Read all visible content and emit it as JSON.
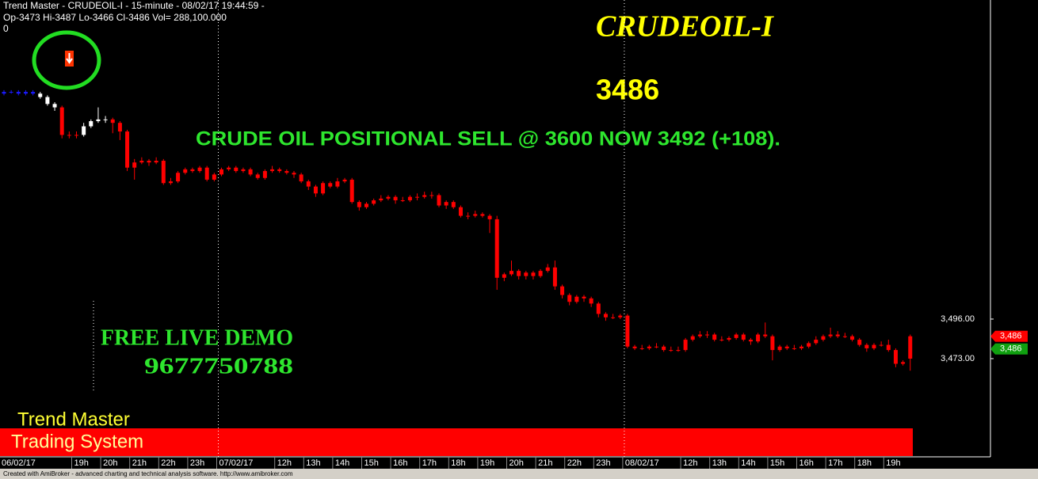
{
  "header": {
    "line1": "Trend Master  - CRUDEOIL-I - 15-minute  - 08/02/17 19:44:59 -",
    "line2": "Op-3473  Hi-3487  Lo-3466  Cl-3486  Vol= 288,100.000",
    "line3": "0"
  },
  "chart_data": {
    "type": "candlestick",
    "title": "CRUDEOIL-I",
    "last_price": 3486,
    "annotations": [
      "CRUDE OIL POSITIONAL SELL @ 3600 NOW 3492 (+108).",
      "FREE LIVE DEMO",
      "9677750788"
    ],
    "brand": [
      "Trend Master",
      "Trading System"
    ],
    "categories": [
      "06/02/17",
      null,
      null,
      null,
      null,
      null,
      null,
      null,
      null,
      null,
      "19h",
      null,
      null,
      null,
      "20h",
      null,
      null,
      null,
      "21h",
      null,
      null,
      null,
      "22h",
      null,
      null,
      null,
      "23h",
      null,
      null,
      null,
      "07/02/17",
      null,
      null,
      null,
      null,
      null,
      null,
      null,
      "12h",
      null,
      null,
      null,
      "13h",
      null,
      null,
      null,
      "14h",
      null,
      null,
      null,
      "15h",
      null,
      null,
      null,
      "16h",
      null,
      null,
      null,
      "17h",
      null,
      null,
      null,
      "18h",
      null,
      null,
      null,
      "19h",
      null,
      null,
      null,
      "20h",
      null,
      null,
      null,
      "21h",
      null,
      null,
      null,
      "22h",
      null,
      null,
      null,
      "23h",
      null,
      null,
      null,
      "08/02/17",
      null,
      null,
      null,
      null,
      null,
      null,
      null,
      "12h",
      null,
      null,
      null,
      "13h",
      null,
      null,
      null,
      "14h",
      null,
      null,
      null,
      "15h",
      null,
      null,
      null,
      "16h",
      null,
      null,
      null,
      "17h",
      null,
      null,
      null,
      "18h",
      null,
      null,
      null,
      "19h",
      null,
      null,
      null
    ],
    "open": [
      3627,
      3628,
      3628,
      3627,
      3628,
      3627,
      3625,
      3621,
      3619,
      3603,
      3603,
      3603,
      3608,
      3611,
      3612,
      3612,
      3610,
      3605,
      3584,
      3587,
      3588,
      3587,
      3588,
      3575,
      3576,
      3581,
      3583,
      3582,
      3584,
      3577,
      3580,
      3583,
      3584,
      3582,
      3583,
      3580,
      3578,
      3582,
      3583,
      3582,
      3581,
      3580,
      3576,
      3573,
      3569,
      3575,
      3573,
      3576,
      3577,
      3564,
      3561,
      3563,
      3565,
      3566,
      3567,
      3565,
      3565,
      3567,
      3567,
      3568,
      3568,
      3562,
      3564,
      3561,
      3556,
      3556,
      3557,
      3556,
      3554,
      3520,
      3522,
      3524,
      3521,
      3523,
      3521,
      3524,
      3526,
      3515,
      3510,
      3506,
      3509,
      3508,
      3505,
      3499,
      3497,
      3497,
      3498,
      3480,
      3479,
      3479,
      3480,
      3480,
      3478,
      3478,
      3478,
      3484,
      3486,
      3487,
      3487,
      3484,
      3484,
      3485,
      3487,
      3484,
      3483,
      3487,
      3486,
      3478,
      3480,
      3479,
      3479,
      3480,
      3482,
      3484,
      3486,
      3487,
      3486,
      3486,
      3484,
      3481,
      3479,
      3481,
      3481,
      3478,
      3470,
      3473
    ],
    "high": [
      3629,
      3629,
      3629,
      3629,
      3629,
      3628,
      3626,
      3622,
      3620,
      3605,
      3605,
      3610,
      3612,
      3619,
      3614,
      3613,
      3611,
      3606,
      3589,
      3590,
      3589,
      3590,
      3589,
      3578,
      3582,
      3584,
      3584,
      3585,
      3585,
      3581,
      3584,
      3585,
      3585,
      3584,
      3584,
      3581,
      3583,
      3585,
      3584,
      3583,
      3582,
      3581,
      3577,
      3574,
      3576,
      3576,
      3578,
      3578,
      3578,
      3565,
      3564,
      3566,
      3568,
      3568,
      3568,
      3567,
      3568,
      3569,
      3570,
      3570,
      3569,
      3565,
      3565,
      3562,
      3558,
      3559,
      3558,
      3557,
      3556,
      3523,
      3530,
      3525,
      3524,
      3524,
      3525,
      3528,
      3530,
      3516,
      3511,
      3510,
      3510,
      3509,
      3506,
      3500,
      3499,
      3499,
      3499,
      3481,
      3481,
      3481,
      3482,
      3481,
      3480,
      3480,
      3485,
      3487,
      3489,
      3489,
      3488,
      3486,
      3486,
      3488,
      3488,
      3485,
      3488,
      3494,
      3487,
      3481,
      3481,
      3481,
      3481,
      3483,
      3486,
      3487,
      3491,
      3489,
      3488,
      3487,
      3485,
      3482,
      3482,
      3483,
      3484,
      3479,
      3472,
      3487
    ],
    "low": [
      3626,
      3627,
      3626,
      3626,
      3626,
      3624,
      3620,
      3617,
      3601,
      3601,
      3601,
      3602,
      3607,
      3610,
      3610,
      3604,
      3600,
      3582,
      3577,
      3586,
      3585,
      3586,
      3574,
      3574,
      3575,
      3580,
      3581,
      3581,
      3576,
      3576,
      3579,
      3582,
      3581,
      3581,
      3579,
      3577,
      3577,
      3581,
      3581,
      3580,
      3578,
      3575,
      3571,
      3567,
      3568,
      3572,
      3572,
      3575,
      3563,
      3559,
      3560,
      3562,
      3564,
      3565,
      3563,
      3564,
      3564,
      3565,
      3566,
      3566,
      3561,
      3560,
      3560,
      3555,
      3554,
      3555,
      3555,
      3546,
      3513,
      3518,
      3521,
      3519,
      3519,
      3519,
      3520,
      3523,
      3513,
      3508,
      3504,
      3505,
      3506,
      3503,
      3497,
      3495,
      3496,
      3496,
      3479,
      3478,
      3478,
      3478,
      3479,
      3477,
      3477,
      3477,
      3477,
      3483,
      3485,
      3485,
      3483,
      3483,
      3483,
      3484,
      3483,
      3481,
      3482,
      3485,
      3472,
      3477,
      3478,
      3478,
      3478,
      3479,
      3481,
      3483,
      3485,
      3485,
      3485,
      3483,
      3480,
      3477,
      3478,
      3480,
      3477,
      3468,
      3469,
      3466
    ],
    "close": [
      3628,
      3628,
      3627,
      3628,
      3627,
      3625,
      3621,
      3619,
      3603,
      3603,
      3603,
      3608,
      3611,
      3612,
      3612,
      3610,
      3605,
      3584,
      3587,
      3588,
      3587,
      3588,
      3575,
      3576,
      3581,
      3583,
      3582,
      3584,
      3577,
      3580,
      3583,
      3584,
      3582,
      3583,
      3580,
      3578,
      3582,
      3583,
      3582,
      3581,
      3580,
      3576,
      3573,
      3569,
      3575,
      3573,
      3576,
      3577,
      3564,
      3561,
      3563,
      3565,
      3566,
      3567,
      3565,
      3565,
      3567,
      3567,
      3568,
      3568,
      3562,
      3564,
      3561,
      3556,
      3556,
      3557,
      3556,
      3554,
      3520,
      3522,
      3524,
      3521,
      3523,
      3521,
      3524,
      3526,
      3515,
      3510,
      3506,
      3509,
      3508,
      3505,
      3499,
      3497,
      3497,
      3498,
      3480,
      3479,
      3479,
      3480,
      3480,
      3478,
      3478,
      3478,
      3484,
      3486,
      3487,
      3487,
      3484,
      3484,
      3485,
      3487,
      3484,
      3483,
      3487,
      3486,
      3478,
      3480,
      3479,
      3479,
      3480,
      3482,
      3484,
      3486,
      3487,
      3486,
      3486,
      3484,
      3481,
      3479,
      3481,
      3481,
      3478,
      3470,
      3471,
      3486
    ],
    "colors": [
      "#1a1aff",
      "#1a1aff",
      "#1a1aff",
      "#1a1aff",
      "#1a1aff",
      "#ffffff",
      "#ffffff",
      "#ffffff",
      "#ff0000",
      "#ff0000",
      "#ff0000",
      "#ffffff",
      "#ffffff",
      "#ffffff",
      "#ffffff",
      "#ff0000",
      "#ff0000",
      "#ff0000",
      "#ff0000",
      "#ff0000",
      "#ff0000",
      "#ff0000",
      "#ff0000",
      "#ff0000",
      "#ff0000",
      "#ff0000",
      "#ff0000",
      "#ff0000",
      "#ff0000",
      "#ff0000",
      "#ff0000",
      "#ff0000",
      "#ff0000",
      "#ff0000",
      "#ff0000",
      "#ff0000",
      "#ff0000",
      "#ff0000",
      "#ff0000",
      "#ff0000",
      "#ff0000",
      "#ff0000",
      "#ff0000",
      "#ff0000",
      "#ff0000",
      "#ff0000",
      "#ff0000",
      "#ff0000",
      "#ff0000",
      "#ff0000",
      "#ff0000",
      "#ff0000",
      "#ff0000",
      "#ff0000",
      "#ff0000",
      "#ff0000",
      "#ff0000",
      "#ff0000",
      "#ff0000",
      "#ff0000",
      "#ff0000",
      "#ff0000",
      "#ff0000",
      "#ff0000",
      "#ff0000",
      "#ff0000",
      "#ff0000",
      "#ff0000",
      "#ff0000",
      "#ff0000",
      "#ff0000",
      "#ff0000",
      "#ff0000",
      "#ff0000",
      "#ff0000",
      "#ff0000",
      "#ff0000",
      "#ff0000",
      "#ff0000",
      "#ff0000",
      "#ff0000",
      "#ff0000",
      "#ff0000",
      "#ff0000",
      "#ff0000",
      "#ff0000",
      "#ff0000",
      "#ff0000",
      "#ff0000",
      "#ff0000",
      "#ff0000",
      "#ff0000",
      "#ff0000",
      "#ff0000",
      "#ff0000",
      "#ff0000",
      "#ff0000",
      "#ff0000",
      "#ff0000",
      "#ff0000",
      "#ff0000",
      "#ff0000",
      "#ff0000",
      "#ff0000",
      "#ff0000",
      "#ff0000",
      "#ff0000",
      "#ff0000",
      "#ff0000",
      "#ff0000",
      "#ff0000",
      "#ff0000",
      "#ff0000",
      "#ff0000",
      "#ff0000",
      "#ff0000",
      "#ff0000",
      "#ff0000",
      "#ff0000",
      "#ff0000",
      "#ff0000",
      "#ff0000",
      "#ff0000",
      "#ff0000",
      "#ff0000",
      "#ff0000"
    ],
    "ylim": [
      3416.4,
      3681.4
    ],
    "yticks": [
      {
        "value": 3496,
        "label": "3,496.00"
      },
      {
        "value": 3473,
        "label": "3,473.00"
      }
    ],
    "price_tags": [
      {
        "value": 3486,
        "label": "3,486",
        "color": "#ff0000"
      },
      {
        "value": 3486,
        "label": "3,486",
        "color": "#10a010"
      }
    ]
  },
  "footer": "Created with AmiBroker - advanced charting and technical analysis software. http://www.amibroker.com"
}
